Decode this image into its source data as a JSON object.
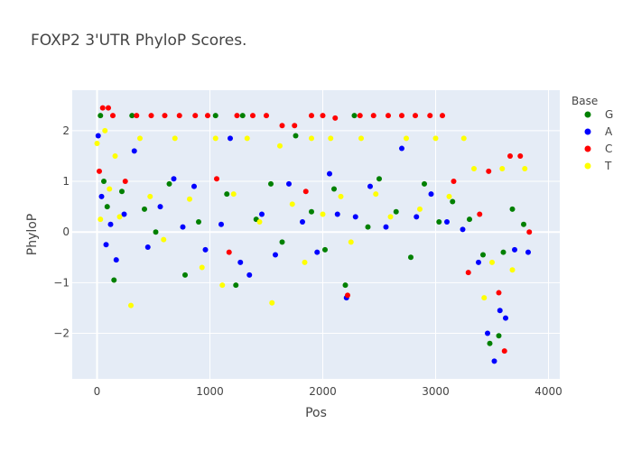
{
  "chart_data": {
    "type": "scatter",
    "title": "FOXP2 3'UTR PhyloP Scores.",
    "xlabel": "Pos",
    "ylabel": "PhyloP",
    "xlim": [
      -220,
      4100
    ],
    "ylim": [
      -2.9,
      2.8
    ],
    "x_ticks": [
      0,
      1000,
      2000,
      3000,
      4000
    ],
    "x_tick_labels": [
      "0",
      "1000",
      "2000",
      "3000",
      "4000"
    ],
    "y_ticks": [
      -2,
      -1,
      0,
      1,
      2
    ],
    "y_tick_labels": [
      "−2",
      "−1",
      "0",
      "1",
      "2"
    ],
    "grid": true,
    "legend_title": "Base",
    "legend_position": "right",
    "series": [
      {
        "name": "G",
        "color": "#008000",
        "points": [
          [
            30,
            2.3
          ],
          [
            60,
            1.0
          ],
          [
            90,
            0.5
          ],
          [
            150,
            -0.95
          ],
          [
            220,
            0.8
          ],
          [
            310,
            2.3
          ],
          [
            420,
            0.45
          ],
          [
            520,
            0.0
          ],
          [
            640,
            0.95
          ],
          [
            780,
            -0.85
          ],
          [
            900,
            0.2
          ],
          [
            1050,
            2.3
          ],
          [
            1150,
            0.75
          ],
          [
            1230,
            -1.05
          ],
          [
            1290,
            2.3
          ],
          [
            1410,
            0.25
          ],
          [
            1540,
            0.95
          ],
          [
            1640,
            -0.2
          ],
          [
            1760,
            1.9
          ],
          [
            1900,
            0.4
          ],
          [
            2020,
            -0.35
          ],
          [
            2100,
            0.85
          ],
          [
            2200,
            -1.05
          ],
          [
            2280,
            2.3
          ],
          [
            2400,
            0.1
          ],
          [
            2500,
            1.05
          ],
          [
            2650,
            0.4
          ],
          [
            2780,
            -0.5
          ],
          [
            2900,
            0.95
          ],
          [
            3030,
            0.2
          ],
          [
            3150,
            0.6
          ],
          [
            3300,
            0.25
          ],
          [
            3420,
            -0.45
          ],
          [
            3480,
            -2.2
          ],
          [
            3560,
            -2.05
          ],
          [
            3600,
            -0.4
          ],
          [
            3680,
            0.45
          ],
          [
            3780,
            0.15
          ]
        ]
      },
      {
        "name": "A",
        "color": "#0000ff",
        "points": [
          [
            10,
            1.9
          ],
          [
            40,
            0.7
          ],
          [
            80,
            -0.25
          ],
          [
            120,
            0.15
          ],
          [
            170,
            -0.55
          ],
          [
            240,
            0.35
          ],
          [
            330,
            1.6
          ],
          [
            450,
            -0.3
          ],
          [
            560,
            0.5
          ],
          [
            680,
            1.05
          ],
          [
            760,
            0.1
          ],
          [
            860,
            0.9
          ],
          [
            960,
            -0.35
          ],
          [
            1100,
            0.15
          ],
          [
            1180,
            1.85
          ],
          [
            1270,
            -0.6
          ],
          [
            1350,
            -0.85
          ],
          [
            1460,
            0.35
          ],
          [
            1580,
            -0.45
          ],
          [
            1700,
            0.95
          ],
          [
            1820,
            0.2
          ],
          [
            1950,
            -0.4
          ],
          [
            2060,
            1.15
          ],
          [
            2130,
            0.35
          ],
          [
            2210,
            -1.3
          ],
          [
            2290,
            0.3
          ],
          [
            2420,
            0.9
          ],
          [
            2560,
            0.1
          ],
          [
            2700,
            1.65
          ],
          [
            2830,
            0.3
          ],
          [
            2960,
            0.75
          ],
          [
            3100,
            0.2
          ],
          [
            3240,
            0.05
          ],
          [
            3380,
            -0.6
          ],
          [
            3460,
            -2.0
          ],
          [
            3520,
            -2.55
          ],
          [
            3570,
            -1.55
          ],
          [
            3620,
            -1.7
          ],
          [
            3700,
            -0.35
          ],
          [
            3820,
            -0.4
          ]
        ]
      },
      {
        "name": "C",
        "color": "#ff0000",
        "points": [
          [
            20,
            1.2
          ],
          [
            50,
            2.45
          ],
          [
            100,
            2.45
          ],
          [
            140,
            2.3
          ],
          [
            250,
            1.0
          ],
          [
            350,
            2.3
          ],
          [
            480,
            2.3
          ],
          [
            600,
            2.3
          ],
          [
            730,
            2.3
          ],
          [
            870,
            2.3
          ],
          [
            980,
            2.3
          ],
          [
            1060,
            1.05
          ],
          [
            1170,
            -0.4
          ],
          [
            1240,
            2.3
          ],
          [
            1380,
            2.3
          ],
          [
            1500,
            2.3
          ],
          [
            1640,
            2.1
          ],
          [
            1750,
            2.1
          ],
          [
            1850,
            0.8
          ],
          [
            1900,
            2.3
          ],
          [
            2000,
            2.3
          ],
          [
            2110,
            2.25
          ],
          [
            2220,
            -1.25
          ],
          [
            2330,
            2.3
          ],
          [
            2450,
            2.3
          ],
          [
            2580,
            2.3
          ],
          [
            2700,
            2.3
          ],
          [
            2820,
            2.3
          ],
          [
            2950,
            2.3
          ],
          [
            3060,
            2.3
          ],
          [
            3160,
            1.0
          ],
          [
            3290,
            -0.8
          ],
          [
            3390,
            0.35
          ],
          [
            3470,
            1.2
          ],
          [
            3560,
            -1.2
          ],
          [
            3610,
            -2.35
          ],
          [
            3660,
            1.5
          ],
          [
            3750,
            1.5
          ],
          [
            3830,
            0.0
          ]
        ]
      },
      {
        "name": "T",
        "color": "#ffff00",
        "points": [
          [
            0,
            1.75
          ],
          [
            30,
            0.25
          ],
          [
            70,
            2.0
          ],
          [
            110,
            0.85
          ],
          [
            160,
            1.5
          ],
          [
            200,
            0.3
          ],
          [
            300,
            -1.45
          ],
          [
            380,
            1.85
          ],
          [
            470,
            0.7
          ],
          [
            590,
            -0.15
          ],
          [
            690,
            1.85
          ],
          [
            820,
            0.65
          ],
          [
            930,
            -0.7
          ],
          [
            1050,
            1.85
          ],
          [
            1110,
            -1.05
          ],
          [
            1210,
            0.75
          ],
          [
            1330,
            1.85
          ],
          [
            1440,
            0.2
          ],
          [
            1550,
            -1.4
          ],
          [
            1620,
            1.7
          ],
          [
            1730,
            0.55
          ],
          [
            1840,
            -0.6
          ],
          [
            1900,
            1.85
          ],
          [
            2000,
            0.35
          ],
          [
            2070,
            1.85
          ],
          [
            2160,
            0.7
          ],
          [
            2250,
            -0.2
          ],
          [
            2340,
            1.85
          ],
          [
            2470,
            0.75
          ],
          [
            2600,
            0.3
          ],
          [
            2740,
            1.85
          ],
          [
            2860,
            0.45
          ],
          [
            3000,
            1.85
          ],
          [
            3120,
            0.7
          ],
          [
            3250,
            1.85
          ],
          [
            3340,
            1.25
          ],
          [
            3430,
            -1.3
          ],
          [
            3500,
            -0.6
          ],
          [
            3590,
            1.25
          ],
          [
            3680,
            -0.75
          ],
          [
            3790,
            1.25
          ]
        ]
      }
    ]
  }
}
